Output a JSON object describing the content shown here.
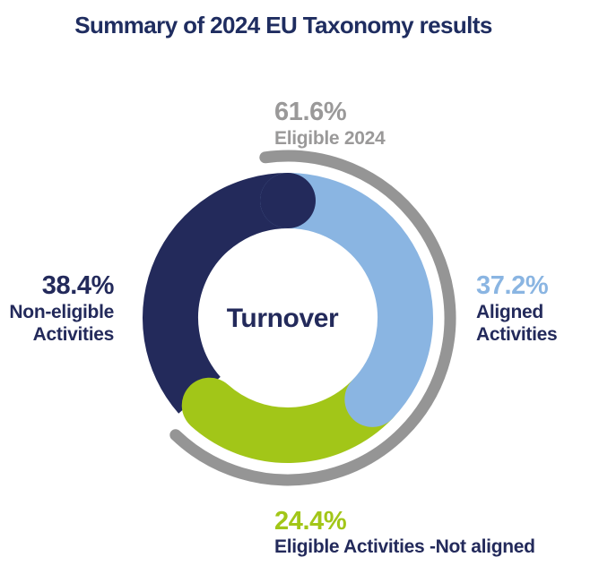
{
  "title": {
    "text": "Summary of 2024 EU Taxonomy results",
    "color": "#1f2d60"
  },
  "center": {
    "label": "Turnover"
  },
  "chart_data": {
    "type": "donut",
    "title": "Summary of 2024 EU Taxonomy results",
    "center_label": "Turnover",
    "unit": "percent",
    "direction": "clockwise",
    "start_angle_deg": 0,
    "segments": [
      {
        "label": "Non-eligible Activities",
        "value": 38.4,
        "color": "#232a5b"
      },
      {
        "label": "Aligned Activities",
        "value": 37.2,
        "color": "#8ab5e2"
      },
      {
        "label": "Eligible Activities -Not aligned",
        "value": 24.4,
        "color": "#a2c618"
      }
    ],
    "outer_arc": {
      "label": "Eligible 2024",
      "value": 61.6,
      "color": "#959595"
    }
  },
  "labels": {
    "eligible": {
      "pct": "61.6%",
      "line1": "Eligible 2024",
      "color": "#9a9999"
    },
    "non_eligible": {
      "pct": "38.4%",
      "line1": "Non-eligible",
      "line2": "Activities",
      "pct_color": "#232a5b"
    },
    "aligned": {
      "pct": "37.2%",
      "line1": "Aligned",
      "line2": "Activities",
      "pct_color": "#8ab5e2"
    },
    "not_aligned": {
      "pct": "24.4%",
      "line1": "Eligible Activities -Not aligned",
      "pct_color": "#a2c618"
    }
  }
}
